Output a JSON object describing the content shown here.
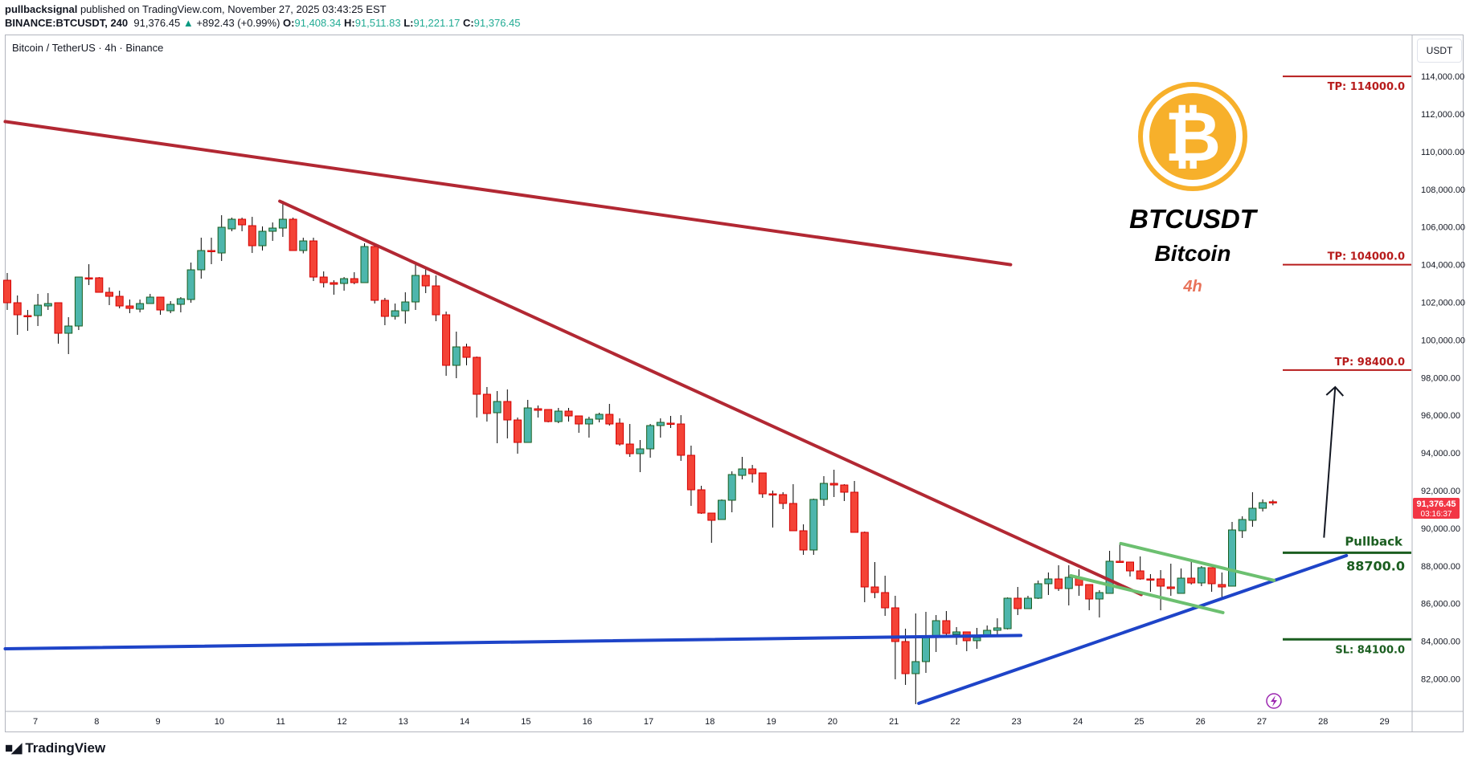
{
  "header": {
    "publisher": "pullbacksignal",
    "published_text": "published on TradingView.com, November 27, 2025 03:43:25 EST",
    "symbol": "BINANCE:BTCUSDT, 240",
    "last_price": "91,376.45",
    "change": "+892.43 (+0.99%)",
    "open_label": "O:",
    "open": "91,408.34",
    "high_label": "H:",
    "high": "91,511.83",
    "low_label": "L:",
    "low": "91,221.17",
    "close_label": "C:",
    "close": "91,376.45"
  },
  "legend": "Bitcoin / TetherUS · 4h · Binance",
  "price_axis": {
    "currency": "USDT",
    "ticks": [
      "114,000.00",
      "112,000.00",
      "110,000.00",
      "108,000.00",
      "106,000.00",
      "104,000.00",
      "102,000.00",
      "100,000.00",
      "98,000.00",
      "96,000.00",
      "94,000.00",
      "92,000.00",
      "90,000.00",
      "88,000.00",
      "86,000.00",
      "84,000.00",
      "82,000.00"
    ],
    "current_price_label": "91,376.45",
    "countdown": "03:16:37",
    "current_color": "#f23645"
  },
  "time_axis": {
    "ticks": [
      "7",
      "8",
      "9",
      "10",
      "11",
      "12",
      "13",
      "14",
      "15",
      "16",
      "17",
      "18",
      "19",
      "20",
      "21",
      "22",
      "23",
      "24",
      "25",
      "26",
      "27",
      "28",
      "29"
    ]
  },
  "overlay": {
    "ticker": "BTCUSDT",
    "name": "Bitcoin",
    "timeframe": "4h",
    "logo_color": "#f7b02b",
    "timeframe_color": "#e8735a"
  },
  "levels": [
    {
      "label": "TP: 114000.0",
      "price": 114000,
      "color": "#b71c1c",
      "label_pos": "below"
    },
    {
      "label": "TP: 104000.0",
      "price": 104000,
      "color": "#b71c1c",
      "label_pos": "above"
    },
    {
      "label": "TP: 98400.0",
      "price": 98400,
      "color": "#b71c1c",
      "label_pos": "above"
    },
    {
      "label": "88700.0",
      "price": 88700,
      "color": "#1b5e20",
      "label_pos": "below",
      "title": "Pullback"
    },
    {
      "label": "SL: 84100.0",
      "price": 84100,
      "color": "#1b5e20",
      "label_pos": "below"
    }
  ],
  "branding": "TradingView",
  "colors": {
    "up": "#4db6ac",
    "up_border": "#1b5e20",
    "down": "#f44336",
    "down_border": "#d50000",
    "wick": "#000000"
  },
  "chart_data": {
    "type": "candlestick",
    "title": "Bitcoin / TetherUS · 4h · Binance",
    "xlabel": "",
    "ylabel": "USDT",
    "ylim": [
      80000,
      115000
    ],
    "x_ticks": [
      "7",
      "8",
      "9",
      "10",
      "11",
      "12",
      "13",
      "14",
      "15",
      "16",
      "17",
      "18",
      "19",
      "20",
      "21",
      "22",
      "23",
      "24",
      "25",
      "26",
      "27",
      "28",
      "29"
    ],
    "grid": false,
    "candles_ohlc": [
      [
        103172,
        103556,
        101594,
        101978
      ],
      [
        101978,
        102362,
        100272,
        101338
      ],
      [
        101295,
        101594,
        100486,
        101280
      ],
      [
        101295,
        102447,
        100741,
        101850
      ],
      [
        101807,
        102489,
        101594,
        101935
      ],
      [
        101978,
        101978,
        99803,
        100357
      ],
      [
        100357,
        101210,
        99249,
        100741
      ],
      [
        100741,
        103342,
        100528,
        103342
      ],
      [
        103300,
        104024,
        102916,
        103257
      ],
      [
        103300,
        103342,
        102532,
        102532
      ],
      [
        102532,
        102788,
        101850,
        102319
      ],
      [
        102319,
        102617,
        101679,
        101807
      ],
      [
        101807,
        102148,
        101423,
        101679
      ],
      [
        101637,
        102148,
        101466,
        101935
      ],
      [
        101935,
        102447,
        101935,
        102276
      ],
      [
        102276,
        102276,
        101338,
        101594
      ],
      [
        101551,
        102063,
        101423,
        101893
      ],
      [
        101893,
        102276,
        101466,
        102191
      ],
      [
        102148,
        104110,
        101978,
        103726
      ],
      [
        103726,
        105432,
        103257,
        104750
      ],
      [
        104750,
        105432,
        104024,
        104700
      ],
      [
        104621,
        106626,
        104195,
        105986
      ],
      [
        105901,
        106498,
        105773,
        106413
      ],
      [
        106413,
        106498,
        105773,
        106114
      ],
      [
        106071,
        106540,
        104621,
        105005
      ],
      [
        105005,
        106029,
        104750,
        105773
      ],
      [
        105773,
        106242,
        105261,
        105943
      ],
      [
        105943,
        107393,
        105474,
        106413
      ],
      [
        106413,
        106498,
        104750,
        104750
      ],
      [
        104750,
        105432,
        104600,
        105261
      ],
      [
        105261,
        105432,
        103129,
        103342
      ],
      [
        103342,
        103641,
        102788,
        103044
      ],
      [
        103044,
        103172,
        102404,
        102958
      ],
      [
        103001,
        103342,
        102617,
        103257
      ],
      [
        103257,
        103598,
        102958,
        103044
      ],
      [
        103044,
        105133,
        103044,
        104962
      ],
      [
        104962,
        105133,
        101935,
        102106
      ],
      [
        102106,
        102234,
        100784,
        101253
      ],
      [
        101253,
        101935,
        101082,
        101551
      ],
      [
        101551,
        102532,
        100869,
        102020
      ],
      [
        102020,
        104024,
        101594,
        103428
      ],
      [
        103428,
        103769,
        102489,
        102873
      ],
      [
        102873,
        103428,
        100997,
        101338
      ],
      [
        101338,
        101509,
        98098,
        98652
      ],
      [
        98652,
        100443,
        97970,
        99633
      ],
      [
        99633,
        99803,
        98652,
        99078
      ],
      [
        99078,
        99121,
        95880,
        97117
      ],
      [
        97117,
        97501,
        95667,
        96093
      ],
      [
        96136,
        97287,
        94516,
        96733
      ],
      [
        96733,
        97373,
        94772,
        95752
      ],
      [
        95752,
        95880,
        93961,
        94558
      ],
      [
        94558,
        96818,
        94558,
        96392
      ],
      [
        96349,
        96520,
        95880,
        96264
      ],
      [
        96307,
        96307,
        95624,
        95667
      ],
      [
        95667,
        96392,
        95582,
        96221
      ],
      [
        96221,
        96392,
        95667,
        95966
      ],
      [
        95966,
        95966,
        95070,
        95539
      ],
      [
        95539,
        95923,
        94814,
        95795
      ],
      [
        95795,
        96136,
        95624,
        96051
      ],
      [
        96051,
        96605,
        95454,
        95539
      ],
      [
        95582,
        95838,
        94388,
        94473
      ],
      [
        94473,
        95539,
        93791,
        93961
      ],
      [
        93961,
        94686,
        92981,
        94217
      ],
      [
        94217,
        95539,
        93748,
        95454
      ],
      [
        95454,
        95838,
        94814,
        95624
      ],
      [
        95582,
        95966,
        95326,
        95539
      ],
      [
        95539,
        96008,
        93578,
        93876
      ],
      [
        93876,
        94388,
        91190,
        92043
      ],
      [
        92043,
        92256,
        90763,
        90806
      ],
      [
        90806,
        90806,
        89228,
        90422
      ],
      [
        90465,
        91531,
        90465,
        91488
      ],
      [
        91488,
        93023,
        90849,
        92853
      ],
      [
        92810,
        93791,
        92597,
        93151
      ],
      [
        93151,
        93364,
        92426,
        92895
      ],
      [
        92938,
        92938,
        91616,
        91829
      ],
      [
        91829,
        92000,
        90039,
        91787
      ],
      [
        91787,
        91915,
        91019,
        91318
      ],
      [
        91318,
        92341,
        89868,
        89868
      ],
      [
        89868,
        90209,
        88589,
        88845
      ],
      [
        88845,
        91574,
        88589,
        91531
      ],
      [
        91531,
        92768,
        91190,
        92384
      ],
      [
        92384,
        93109,
        91659,
        92298
      ],
      [
        92298,
        92341,
        91446,
        91915
      ],
      [
        91915,
        92512,
        89783,
        89783
      ],
      [
        89783,
        89825,
        86073,
        86883
      ],
      [
        86883,
        88205,
        86286,
        86585
      ],
      [
        86585,
        87480,
        85348,
        85774
      ],
      [
        85774,
        86414,
        81980,
        83984
      ],
      [
        83984,
        84667,
        81681,
        82278
      ],
      [
        82278,
        85476,
        80658,
        82918
      ],
      [
        82918,
        85562,
        82321,
        84197
      ],
      [
        84197,
        85391,
        83429,
        85092
      ],
      [
        85092,
        85604,
        84240,
        84410
      ],
      [
        84368,
        84752,
        83813,
        84496
      ],
      [
        84496,
        84496,
        83472,
        84027
      ],
      [
        84027,
        84709,
        83600,
        84197
      ],
      [
        84240,
        84837,
        84240,
        84581
      ],
      [
        84581,
        85220,
        84240,
        84709
      ],
      [
        84667,
        86329,
        84624,
        86286
      ],
      [
        86286,
        86883,
        85391,
        85732
      ],
      [
        85732,
        86414,
        85732,
        86286
      ],
      [
        86286,
        87224,
        86243,
        87054
      ],
      [
        87054,
        87651,
        86457,
        87309
      ],
      [
        87309,
        88034,
        86670,
        86798
      ],
      [
        86798,
        88034,
        85902,
        87395
      ],
      [
        87395,
        87821,
        86414,
        86968
      ],
      [
        87011,
        87011,
        85647,
        86243
      ],
      [
        86243,
        86712,
        85263,
        86585
      ],
      [
        86542,
        88802,
        86542,
        88248
      ],
      [
        88248,
        89143,
        88205,
        88205
      ],
      [
        88205,
        88205,
        87437,
        87736
      ],
      [
        87736,
        88504,
        87267,
        87309
      ],
      [
        87309,
        87565,
        86627,
        87267
      ],
      [
        87309,
        87779,
        85646,
        86926
      ],
      [
        86883,
        88120,
        86414,
        86798
      ],
      [
        86542,
        87864,
        86542,
        87352
      ],
      [
        87352,
        88205,
        87011,
        87096
      ],
      [
        87096,
        87992,
        86926,
        87907
      ],
      [
        87907,
        87907,
        86627,
        87054
      ],
      [
        87011,
        87651,
        86201,
        86883
      ],
      [
        86926,
        90337,
        86926,
        89911
      ],
      [
        89868,
        90635,
        89484,
        90465
      ],
      [
        90422,
        91915,
        90081,
        91062
      ],
      [
        91062,
        91531,
        90891,
        91360
      ],
      [
        91408,
        91512,
        91221,
        91376
      ]
    ],
    "trendlines": [
      {
        "name": "long-term-resistance",
        "color": "#b22833",
        "from": {
          "candle": -0.2,
          "price": 111600
        },
        "to": {
          "candle": 98.3,
          "price": 104000
        }
      },
      {
        "name": "descending-resistance",
        "color": "#b22833",
        "from": {
          "candle": 26.7,
          "price": 107370
        },
        "to": {
          "candle": 111.1,
          "price": 86480
        }
      },
      {
        "name": "horizontal-support",
        "color": "#1e44c8",
        "from": {
          "candle": -0.2,
          "price": 83600
        },
        "to": {
          "candle": 99.3,
          "price": 84310
        }
      },
      {
        "name": "rising-support",
        "color": "#1e44c8",
        "from": {
          "candle": 89.3,
          "price": 80700
        },
        "to": {
          "candle": 131.2,
          "price": 88550
        }
      },
      {
        "name": "flag-upper",
        "color": "#6cc070",
        "from": {
          "candle": 109.1,
          "price": 89190
        },
        "to": {
          "candle": 124.1,
          "price": 87230
        }
      },
      {
        "name": "flag-lower",
        "color": "#6cc070",
        "from": {
          "candle": 104.2,
          "price": 87480
        },
        "to": {
          "candle": 119.1,
          "price": 85520
        }
      }
    ],
    "arrow": {
      "from": {
        "candle": 129.0,
        "price": 89500
      },
      "to": {
        "candle": 130.1,
        "price": 97500
      },
      "color": "#131722"
    },
    "levels": [
      114000,
      104000,
      98400,
      88700,
      84100
    ]
  }
}
